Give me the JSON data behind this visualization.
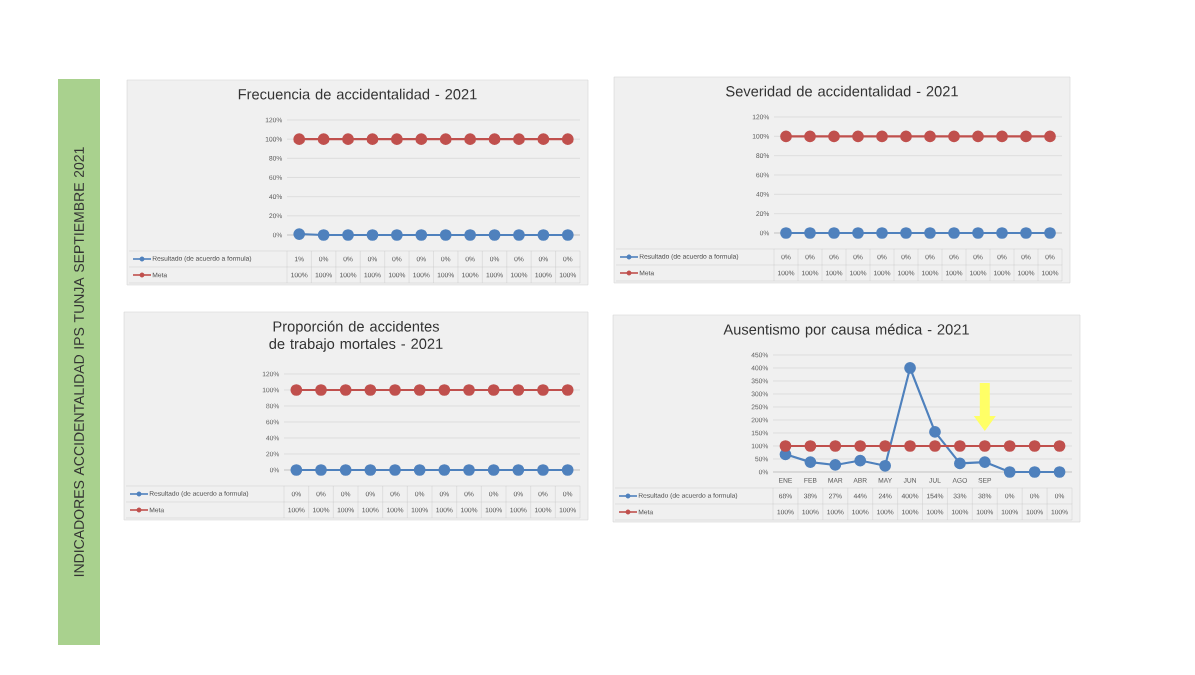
{
  "chart_data": [
    {
      "type": "line",
      "title": "Frecuencia de accidentalidad -  2021",
      "annotations": [
        "INDICADORES ACCIDENTALIDAD IPS TUNJA SEPTIEMBRE 2021"
      ],
      "categories": [
        null,
        null,
        null,
        null,
        null,
        null,
        null,
        null,
        null,
        null,
        null,
        null
      ],
      "series": [
        {
          "name": "Resultado (de acuerdo a formula)",
          "color": "#4f81bd",
          "values": [
            1,
            0,
            0,
            0,
            0,
            0,
            0,
            0,
            0,
            0,
            0,
            0
          ],
          "value_labels": [
            "1%",
            "0%",
            "0%",
            "0%",
            "0%",
            "0%",
            "0%",
            "0%",
            "0%",
            "0%",
            "0%",
            "0%"
          ]
        },
        {
          "name": "Meta",
          "color": "#c0504d",
          "values": [
            100,
            100,
            100,
            100,
            100,
            100,
            100,
            100,
            100,
            100,
            100,
            100
          ],
          "value_labels": [
            "100%",
            "100%",
            "100%",
            "100%",
            "100%",
            "100%",
            "100%",
            "100%",
            "100%",
            "100%",
            "100%",
            "100%"
          ]
        }
      ],
      "ylim": [
        0,
        120
      ],
      "yticks": [
        {
          "value": 0,
          "label": "0%"
        },
        {
          "value": 20,
          "label": "20%"
        },
        {
          "value": 40,
          "label": "40%"
        },
        {
          "value": 60,
          "label": "60%"
        },
        {
          "value": 80,
          "label": "80%"
        },
        {
          "value": 100,
          "label": "100%"
        },
        {
          "value": 120,
          "label": "120%"
        }
      ],
      "grid": "y",
      "legend": "bottom",
      "marker": "circle"
    },
    {
      "type": "line",
      "title": "Severidad de accidentalidad -  2021",
      "categories": [
        null,
        null,
        null,
        null,
        null,
        null,
        null,
        null,
        null,
        null,
        null,
        null
      ],
      "series": [
        {
          "name": "Resultado (de acuerdo a formula)",
          "color": "#4f81bd",
          "values": [
            0,
            0,
            0,
            0,
            0,
            0,
            0,
            0,
            0,
            0,
            0,
            0
          ],
          "value_labels": [
            "0%",
            "0%",
            "0%",
            "0%",
            "0%",
            "0%",
            "0%",
            "0%",
            "0%",
            "0%",
            "0%",
            "0%"
          ]
        },
        {
          "name": "Meta",
          "color": "#c0504d",
          "values": [
            100,
            100,
            100,
            100,
            100,
            100,
            100,
            100,
            100,
            100,
            100,
            100
          ],
          "value_labels": [
            "100%",
            "100%",
            "100%",
            "100%",
            "100%",
            "100%",
            "100%",
            "100%",
            "100%",
            "100%",
            "100%",
            "100%"
          ]
        }
      ],
      "ylim": [
        0,
        120
      ],
      "yticks": [
        {
          "value": 0,
          "label": "0%"
        },
        {
          "value": 20,
          "label": "20%"
        },
        {
          "value": 40,
          "label": "40%"
        },
        {
          "value": 60,
          "label": "60%"
        },
        {
          "value": 80,
          "label": "80%"
        },
        {
          "value": 100,
          "label": "100%"
        },
        {
          "value": 120,
          "label": "120%"
        }
      ],
      "grid": "y",
      "legend": "bottom",
      "marker": "circle"
    },
    {
      "type": "line",
      "title": "Proporción de accidentes de trabajo mortales   - 2021",
      "categories": [
        null,
        null,
        null,
        null,
        null,
        null,
        null,
        null,
        null,
        null,
        null,
        null
      ],
      "series": [
        {
          "name": "Resultado (de acuerdo a formula)",
          "color": "#4f81bd",
          "values": [
            0,
            0,
            0,
            0,
            0,
            0,
            0,
            0,
            0,
            0,
            0,
            0
          ],
          "value_labels": [
            "0%",
            "0%",
            "0%",
            "0%",
            "0%",
            "0%",
            "0%",
            "0%",
            "0%",
            "0%",
            "0%",
            "0%"
          ]
        },
        {
          "name": "Meta",
          "color": "#c0504d",
          "values": [
            100,
            100,
            100,
            100,
            100,
            100,
            100,
            100,
            100,
            100,
            100,
            100
          ],
          "value_labels": [
            "100%",
            "100%",
            "100%",
            "100%",
            "100%",
            "100%",
            "100%",
            "100%",
            "100%",
            "100%",
            "100%",
            "100%"
          ]
        }
      ],
      "ylim": [
        0,
        120
      ],
      "yticks": [
        {
          "value": 0,
          "label": "0%"
        },
        {
          "value": 20,
          "label": "20%"
        },
        {
          "value": 40,
          "label": "40%"
        },
        {
          "value": 60,
          "label": "60%"
        },
        {
          "value": 80,
          "label": "80%"
        },
        {
          "value": 100,
          "label": "100%"
        },
        {
          "value": 120,
          "label": "120%"
        }
      ],
      "grid": "y",
      "legend": "bottom",
      "marker": "circle"
    },
    {
      "type": "line",
      "title": "Ausentismo por causa médica -  2021",
      "categories": [
        "ENE",
        "FEB",
        "MAR",
        "ABR",
        "MAY",
        "JUN",
        "JUL",
        "AGO",
        "SEP",
        null,
        null,
        null
      ],
      "series": [
        {
          "name": "Resultado (de acuerdo a formula)",
          "color": "#4f81bd",
          "values": [
            68,
            38,
            27,
            44,
            24,
            400,
            154,
            33,
            38,
            0,
            0,
            0
          ],
          "value_labels": [
            "68%",
            "38%",
            "27%",
            "44%",
            "24%",
            "400%",
            "154%",
            "33%",
            "38%",
            "0%",
            "0%",
            "0%"
          ]
        },
        {
          "name": "Meta",
          "color": "#c0504d",
          "values": [
            100,
            100,
            100,
            100,
            100,
            100,
            100,
            100,
            100,
            100,
            100,
            100
          ],
          "value_labels": [
            "100%",
            "100%",
            "100%",
            "100%",
            "100%",
            "100%",
            "100%",
            "100%",
            "100%",
            "100%",
            "100%",
            "100%"
          ]
        }
      ],
      "ylim": [
        0,
        450
      ],
      "yticks": [
        {
          "value": 0,
          "label": "0%"
        },
        {
          "value": 50,
          "label": "50%"
        },
        {
          "value": 100,
          "label": "100%"
        },
        {
          "value": 150,
          "label": "150%"
        },
        {
          "value": 200,
          "label": "200%"
        },
        {
          "value": 250,
          "label": "250%"
        },
        {
          "value": 300,
          "label": "300%"
        },
        {
          "value": 350,
          "label": "350%"
        },
        {
          "value": 400,
          "label": "400%"
        },
        {
          "value": 450,
          "label": "450%"
        }
      ],
      "grid": "y",
      "legend": "bottom",
      "marker": "circle"
    }
  ]
}
